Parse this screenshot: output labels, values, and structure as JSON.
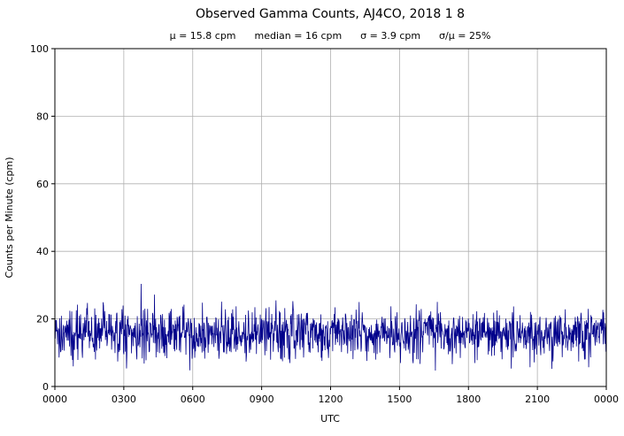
{
  "chart_data": {
    "type": "line",
    "title": "Observed Gamma Counts, AJ4CO, 2018 1 8",
    "stats_line": "μ = 15.8 cpm      median = 16 cpm      σ = 3.9 cpm      σ/μ = 25%",
    "stats": {
      "mu_cpm": 15.8,
      "median_cpm": 16,
      "sigma_cpm": 3.9,
      "sigma_over_mu_pct": 25
    },
    "xlabel": "UTC",
    "ylabel": "Counts per Minute (cpm)",
    "x_tick_labels": [
      "0000",
      "0300",
      "0600",
      "0900",
      "1200",
      "1500",
      "1800",
      "2100",
      "0000"
    ],
    "y_tick_values": [
      0,
      20,
      40,
      60,
      80,
      100
    ],
    "ylim": [
      0,
      100
    ],
    "x_range_minutes": [
      0,
      1440
    ],
    "n_points": 1440,
    "value_min_approx": 4,
    "value_max_approx": 31,
    "line_color": "#00008B",
    "grid_color": "#b0b0b0",
    "grid": true,
    "legend": "none"
  }
}
